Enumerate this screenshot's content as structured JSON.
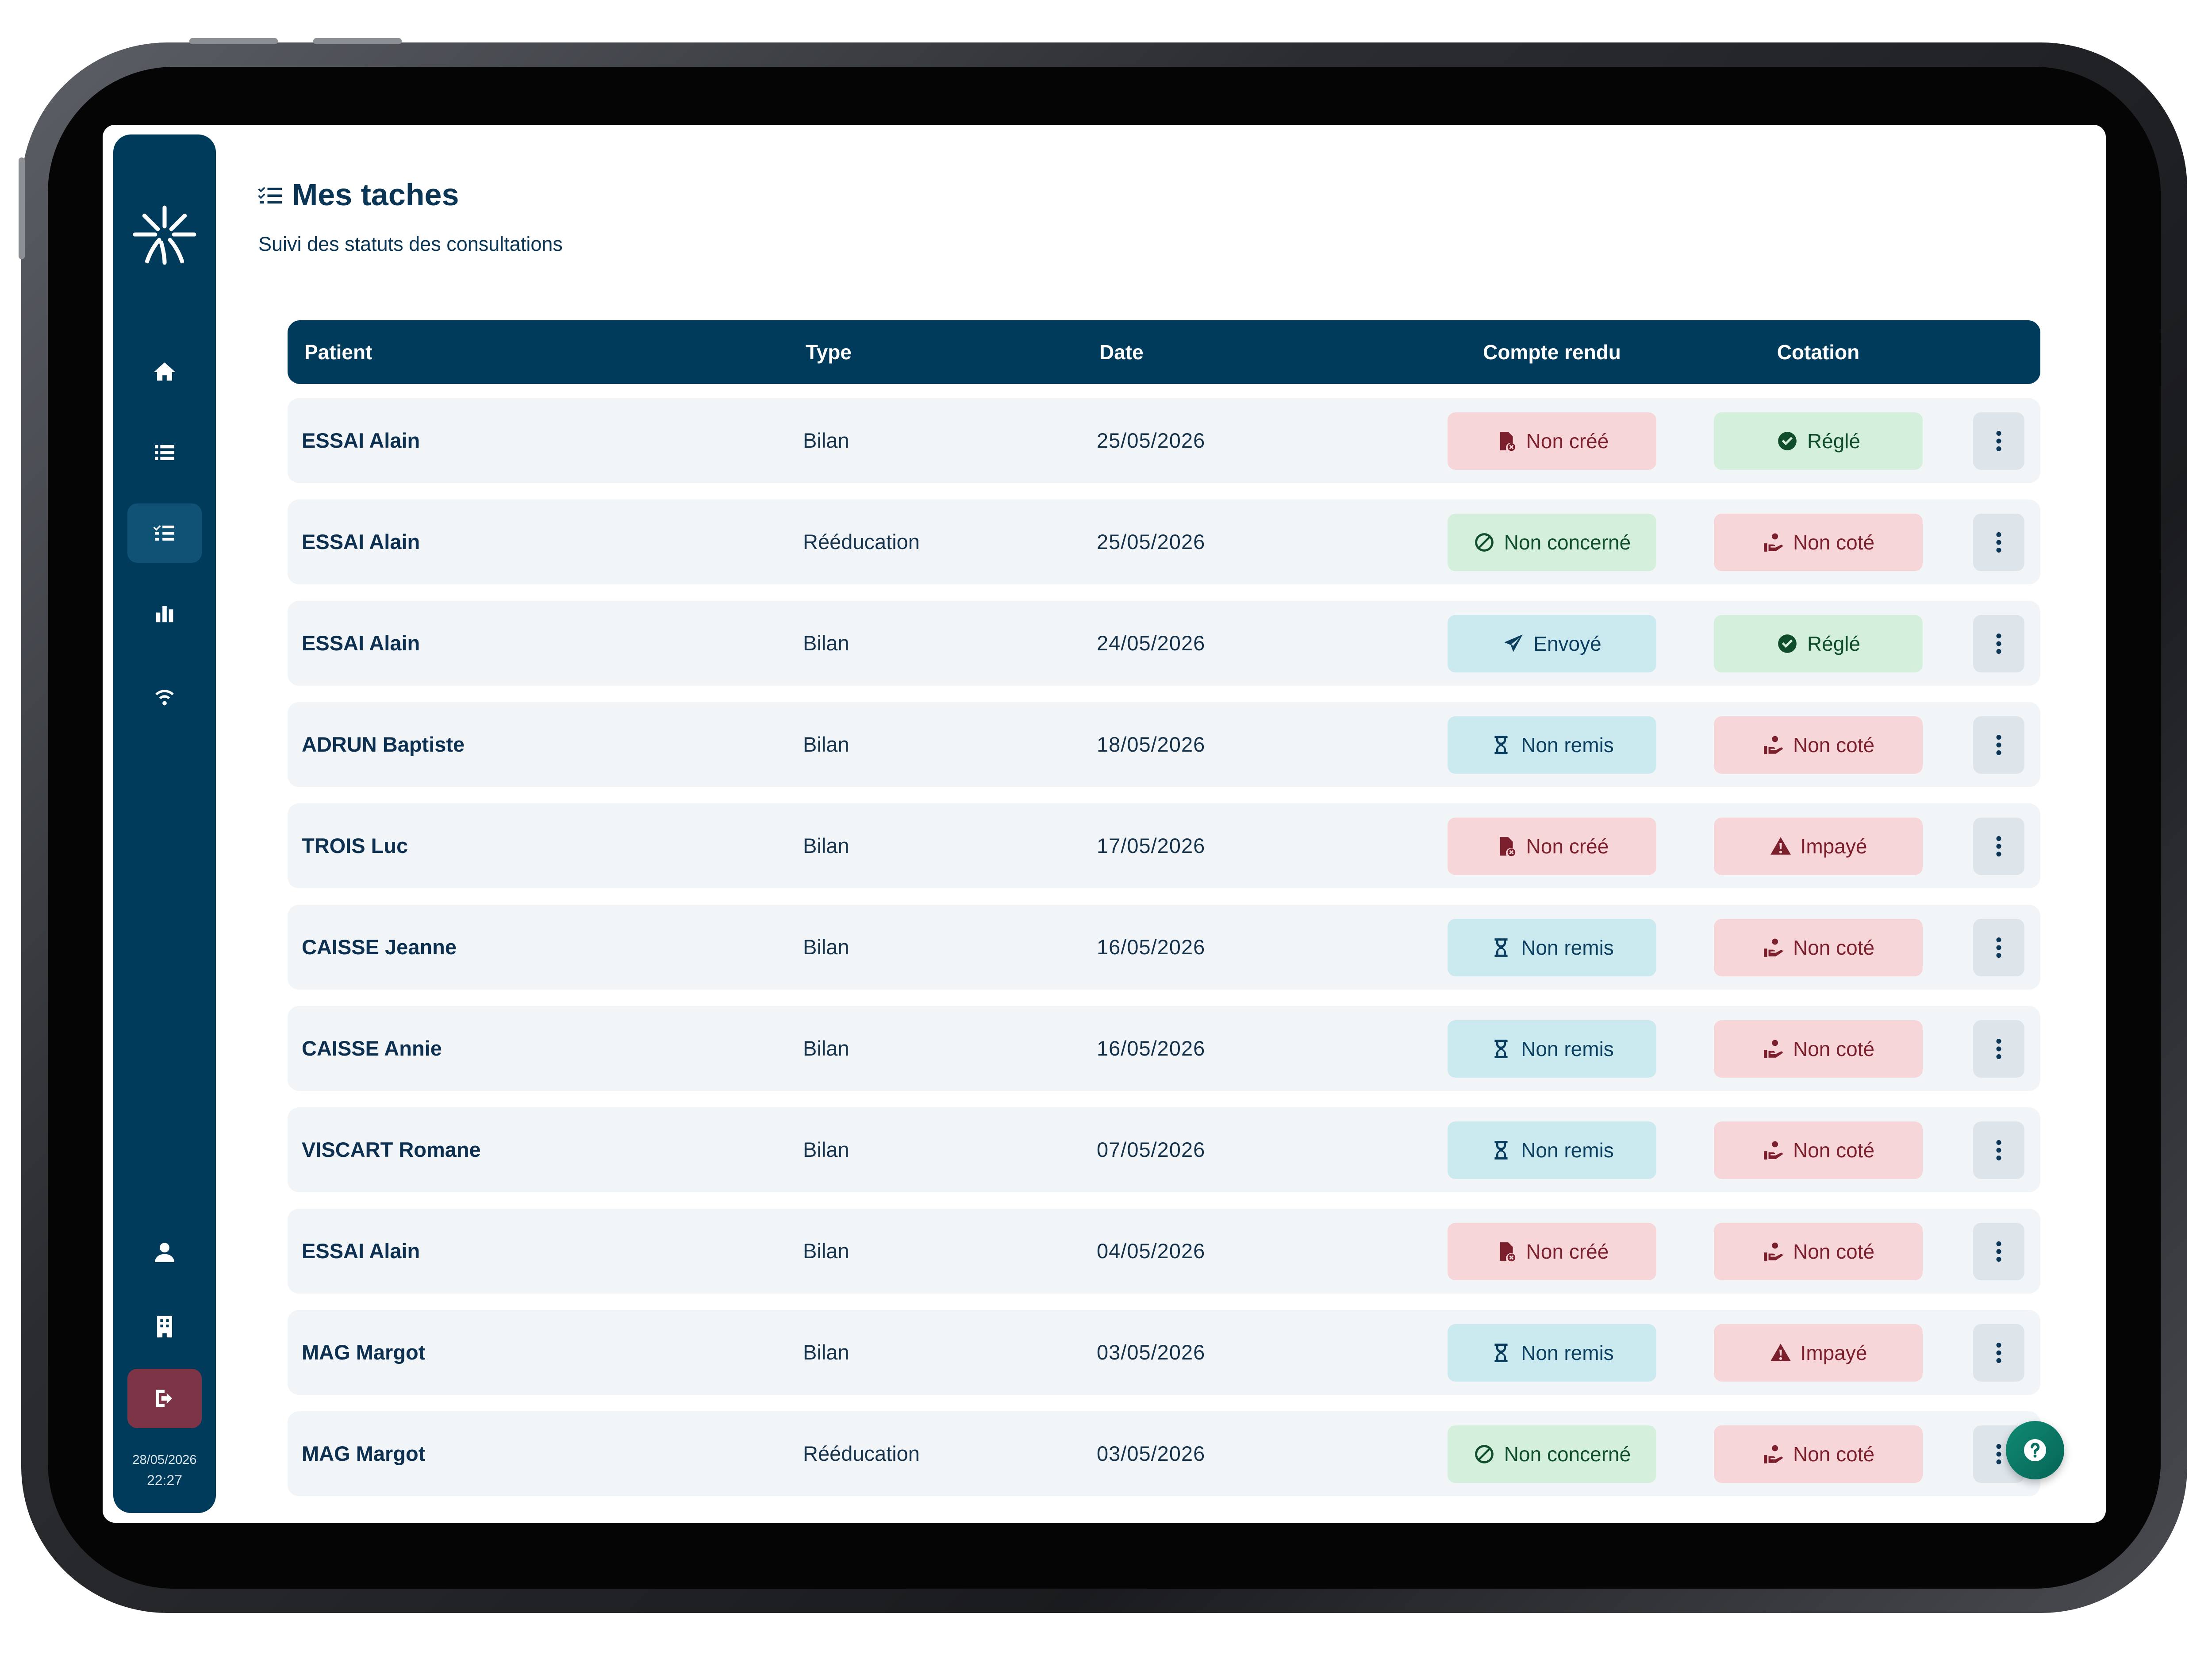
{
  "page": {
    "title": "Mes taches",
    "subtitle": "Suivi des statuts des consultations"
  },
  "sidebar": {
    "nav": [
      {
        "icon": "home-icon",
        "active": false
      },
      {
        "icon": "list-icon",
        "active": false
      },
      {
        "icon": "task-list-icon",
        "active": true
      },
      {
        "icon": "bar-chart-icon",
        "active": false
      },
      {
        "icon": "wifi-icon",
        "active": false
      }
    ],
    "bottom": [
      {
        "icon": "user-icon"
      },
      {
        "icon": "building-icon"
      },
      {
        "icon": "logout-icon"
      }
    ],
    "date": "28/05/2026",
    "time": "22:27"
  },
  "table": {
    "columns": {
      "patient": "Patient",
      "type": "Type",
      "date": "Date",
      "compte_rendu": "Compte rendu",
      "cotation": "Cotation"
    },
    "rows": [
      {
        "patient": "ESSAI Alain",
        "type": "Bilan",
        "date": "25/05/2026",
        "compte_rendu": "Non créé",
        "cotation": "Réglé"
      },
      {
        "patient": "ESSAI Alain",
        "type": "Rééducation",
        "date": "25/05/2026",
        "compte_rendu": "Non concerné",
        "cotation": "Non coté"
      },
      {
        "patient": "ESSAI Alain",
        "type": "Bilan",
        "date": "24/05/2026",
        "compte_rendu": "Envoyé",
        "cotation": "Réglé"
      },
      {
        "patient": "ADRUN Baptiste",
        "type": "Bilan",
        "date": "18/05/2026",
        "compte_rendu": "Non remis",
        "cotation": "Non coté"
      },
      {
        "patient": "TROIS Luc",
        "type": "Bilan",
        "date": "17/05/2026",
        "compte_rendu": "Non créé",
        "cotation": "Impayé"
      },
      {
        "patient": "CAISSE Jeanne",
        "type": "Bilan",
        "date": "16/05/2026",
        "compte_rendu": "Non remis",
        "cotation": "Non coté"
      },
      {
        "patient": "CAISSE Annie",
        "type": "Bilan",
        "date": "16/05/2026",
        "compte_rendu": "Non remis",
        "cotation": "Non coté"
      },
      {
        "patient": "VISCART Romane",
        "type": "Bilan",
        "date": "07/05/2026",
        "compte_rendu": "Non remis",
        "cotation": "Non coté"
      },
      {
        "patient": "ESSAI Alain",
        "type": "Bilan",
        "date": "04/05/2026",
        "compte_rendu": "Non créé",
        "cotation": "Non coté"
      },
      {
        "patient": "MAG Margot",
        "type": "Bilan",
        "date": "03/05/2026",
        "compte_rendu": "Non remis",
        "cotation": "Impayé"
      },
      {
        "patient": "MAG Margot",
        "type": "Rééducation",
        "date": "03/05/2026",
        "compte_rendu": "Non concerné",
        "cotation": "Non coté"
      }
    ]
  },
  "status_styles": {
    "Non créé": {
      "color": "red",
      "icon": "file-x-icon"
    },
    "Non concerné": {
      "color": "green",
      "icon": "ban-icon"
    },
    "Envoyé": {
      "color": "blue",
      "icon": "send-icon"
    },
    "Non remis": {
      "color": "blue",
      "icon": "hourglass-icon"
    },
    "Réglé": {
      "color": "green",
      "icon": "check-circle-icon"
    },
    "Non coté": {
      "color": "red",
      "icon": "hand-coin-icon"
    },
    "Impayé": {
      "color": "red",
      "icon": "warning-icon"
    }
  },
  "colors": {
    "primary": "#003b5c",
    "danger_bg": "#f7d6da",
    "success_bg": "#d4efdc",
    "info_bg": "#cbeaef",
    "logout": "#7d3447",
    "help": "#0f8a73"
  }
}
